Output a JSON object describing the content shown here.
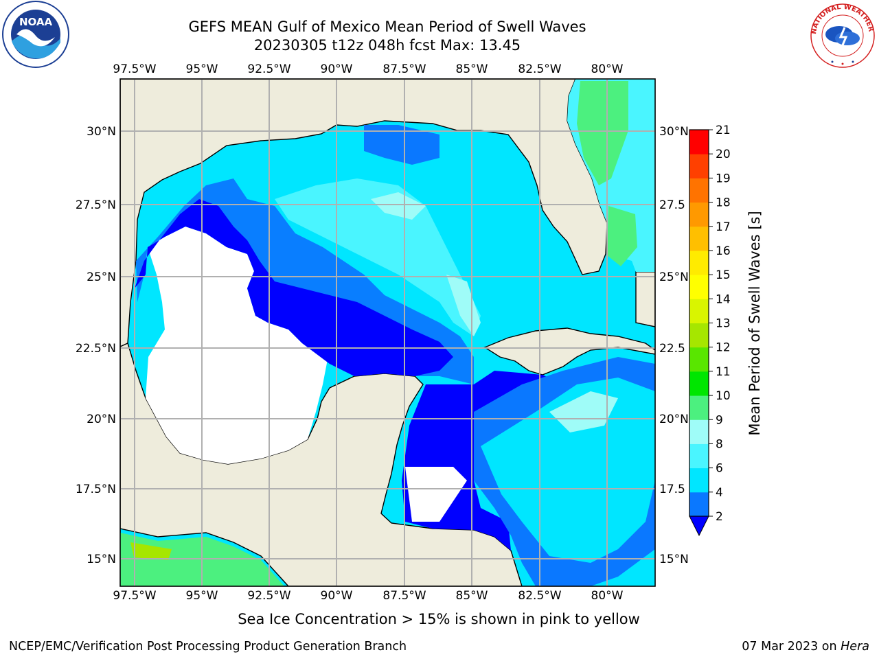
{
  "title": {
    "line1": "GEFS MEAN Gulf of Mexico Mean Period of Swell Waves",
    "line2": "20230305 t12z 048h fcst   Max: 13.45"
  },
  "map": {
    "lon_ticks": [
      "97.5°W",
      "95°W",
      "92.5°W",
      "90°W",
      "87.5°W",
      "85°W",
      "82.5°W",
      "80°W"
    ],
    "lat_ticks_left": [
      "30°N",
      "27.5°N",
      "25°N",
      "22.5°N",
      "20°N",
      "17.5°N",
      "15°N"
    ],
    "lat_ticks_right": [
      "30°N",
      "27.5",
      "25°N",
      "22.5",
      "20°N",
      "17.5",
      "15°N"
    ],
    "land_color": "#eeecdc",
    "grid_color": "#b0b0b0",
    "no_data_color": "#ffffff"
  },
  "colorbar": {
    "label": "Mean Period of Swell Waves [s]",
    "levels": [
      "2",
      "4",
      "6",
      "8",
      "9",
      "10",
      "11",
      "12",
      "13",
      "14",
      "15",
      "16",
      "17",
      "18",
      "19",
      "20",
      "21"
    ],
    "colors": [
      "#0a78ff",
      "#00e6ff",
      "#4af5ff",
      "#9ffcf8",
      "#4cf07f",
      "#00e600",
      "#59e600",
      "#a6e600",
      "#d9f500",
      "#ffff00",
      "#ffeb00",
      "#ffbf00",
      "#ff9900",
      "#ff7300",
      "#ff4000",
      "#ff0000"
    ],
    "under_color": "#0000ff"
  },
  "note": "Sea Ice Concentration > 15% is shown in pink to yellow",
  "footer": {
    "left": "NCEP/EMC/Verification Post Processing Product Generation Branch",
    "right_date": "07 Mar 2023 on ",
    "right_host": "Hera"
  },
  "logos": {
    "noaa_text": "NOAA",
    "nws_text": "NATIONAL WEATHER SERVICE"
  }
}
